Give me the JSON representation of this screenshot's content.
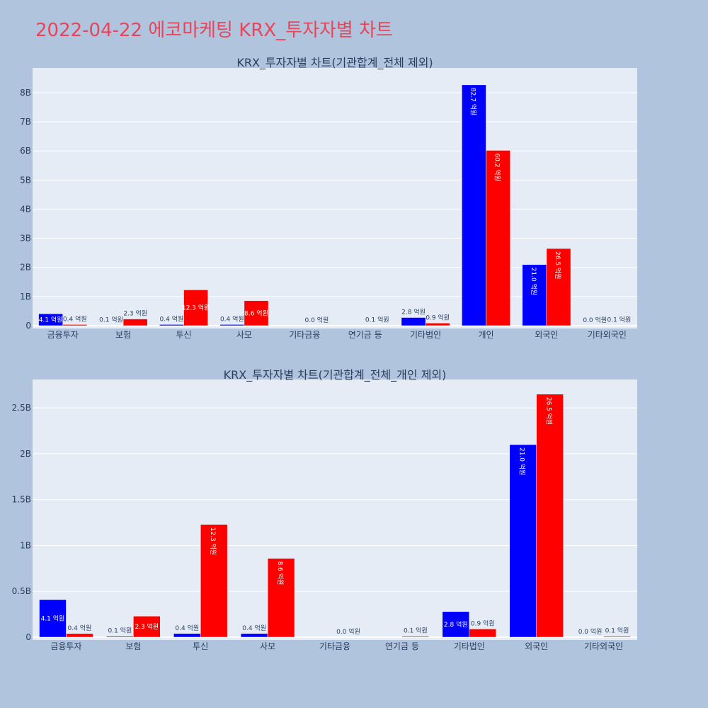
{
  "page_title": "2022-04-22 에코마케팅 KRX_투자자별 차트",
  "colors": {
    "series_a": "#0000ff",
    "series_b": "#ff0000",
    "plot_bg": "#e5ecf6",
    "page_bg": "#b0c4de",
    "title": "#e8455a"
  },
  "chart_data": [
    {
      "type": "bar",
      "title": "KRX_투자자별 차트(기관합계_전체 제외)",
      "categories": [
        "금융투자",
        "보험",
        "투신",
        "사모",
        "기타금융",
        "연기금 등",
        "기타법인",
        "개인",
        "외국인",
        "기타외국인"
      ],
      "series": [
        {
          "values": [
            410000000,
            10000000,
            40000000,
            40000000,
            0,
            0,
            280000000,
            8270000000,
            2100000000,
            0
          ],
          "labels": [
            "4.1 억원",
            "0.1 억원",
            "0.4 억원",
            "0.4 억원",
            "",
            "",
            "2.8 억원",
            "82.7 억원",
            "21.0 억원",
            "0.0 억원"
          ]
        },
        {
          "values": [
            40000000,
            230000000,
            1230000000,
            860000000,
            0,
            10000000,
            90000000,
            6020000000,
            2650000000,
            10000000
          ],
          "labels": [
            "0.4 억원",
            "2.3 억원",
            "12.3 억원",
            "8.6 억원",
            "0.0 억원",
            "0.1 억원",
            "0.9 억원",
            "60.2 억원",
            "26.5 억원",
            "0.1 억원"
          ]
        }
      ],
      "ylim": [
        0,
        8850000000
      ],
      "yticks": [
        0,
        1000000000,
        2000000000,
        3000000000,
        4000000000,
        5000000000,
        6000000000,
        7000000000,
        8000000000
      ],
      "ytick_labels": [
        "0",
        "1B",
        "2B",
        "3B",
        "4B",
        "5B",
        "6B",
        "7B",
        "8B"
      ],
      "grid": true
    },
    {
      "type": "bar",
      "title": "KRX_투자자별 차트(기관합계_전체_개인 제외)",
      "categories": [
        "금융투자",
        "보험",
        "투신",
        "사모",
        "기타금융",
        "연기금 등",
        "기타법인",
        "외국인",
        "기타외국인"
      ],
      "series": [
        {
          "values": [
            410000000,
            10000000,
            40000000,
            40000000,
            0,
            0,
            280000000,
            2100000000,
            0
          ],
          "labels": [
            "4.1 억원",
            "0.1 억원",
            "0.4 억원",
            "0.4 억원",
            "",
            "",
            "2.8 억원",
            "21.0 억원",
            "0.0 억원"
          ]
        },
        {
          "values": [
            40000000,
            230000000,
            1230000000,
            860000000,
            0,
            10000000,
            90000000,
            2650000000,
            10000000
          ],
          "labels": [
            "0.4 억원",
            "2.3 억원",
            "12.3 억원",
            "8.6 억원",
            "0.0 억원",
            "0.1 억원",
            "0.9 억원",
            "26.5 억원",
            "0.1 억원"
          ]
        }
      ],
      "ylim": [
        0,
        2810000000
      ],
      "yticks": [
        0,
        500000000,
        1000000000,
        1500000000,
        2000000000,
        2500000000
      ],
      "ytick_labels": [
        "0",
        "0.5B",
        "1B",
        "1.5B",
        "2B",
        "2.5B"
      ],
      "grid": true
    }
  ]
}
